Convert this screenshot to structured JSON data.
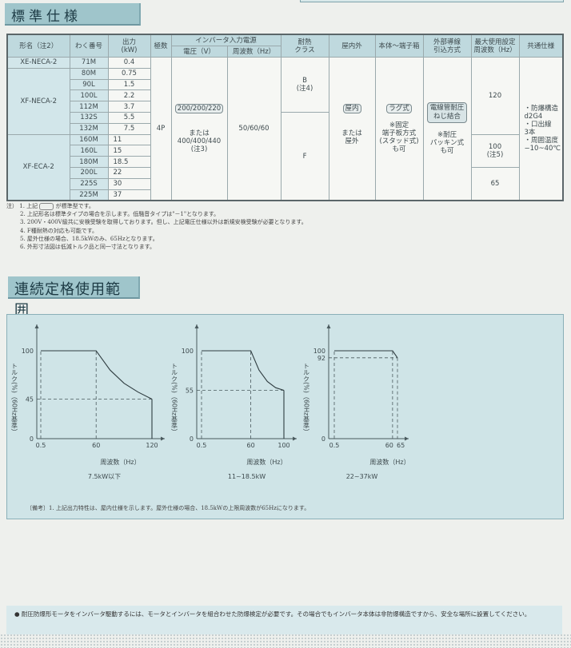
{
  "section1_title": "標準仕様",
  "section2_title": "連続定格使用範囲",
  "table": {
    "headers": {
      "model": "形名（注2）",
      "frame": "わく番号",
      "output": "出力",
      "output_unit": "(kW)",
      "poles": "極数",
      "inverter_power": "インバータ入力電源",
      "voltage": "電圧（V）",
      "frequency": "周波数（Hz）",
      "insulation": "耐熱",
      "insulation2": "クラス",
      "location": "屋内外",
      "terminal": "本体～端子箱",
      "wiring": "外部導線",
      "wiring2": "引込方式",
      "max_freq": "最大使用設定",
      "max_freq2": "周波数（Hz）",
      "common": "共通仕様"
    },
    "models": [
      "XE-NECA-2",
      "XF-NECA-2",
      "XF-ECA-2"
    ],
    "rows": [
      {
        "frame": "71M",
        "output": "0.4"
      },
      {
        "frame": "80M",
        "output": "0.75"
      },
      {
        "frame": "90L",
        "output": "1.5"
      },
      {
        "frame": "100L",
        "output": "2.2"
      },
      {
        "frame": "112M",
        "output": "3.7"
      },
      {
        "frame": "132S",
        "output": "5.5"
      },
      {
        "frame": "132M",
        "output": "7.5"
      },
      {
        "frame": "160M",
        "output": "11"
      },
      {
        "frame": "160L",
        "output": "15"
      },
      {
        "frame": "180M",
        "output": "18.5"
      },
      {
        "frame": "200L",
        "output": "22"
      },
      {
        "frame": "225S",
        "output": "30"
      },
      {
        "frame": "225M",
        "output": "37"
      }
    ],
    "poles": "4P",
    "voltage_std": "200/200/220",
    "voltage_or": "または",
    "voltage_alt": "400/400/440",
    "voltage_note": "(注3)",
    "frequency": "50/60/60",
    "insulation_b": "B",
    "insulation_b_note": "(注4)",
    "insulation_f": "F",
    "location_std": "屋内",
    "location_or": "または",
    "location_alt": "屋外",
    "terminal_std": "ラグ式",
    "terminal_alt": [
      "※固定",
      "端子板方式",
      "(スタッド式)",
      "も可"
    ],
    "wiring_std": [
      "電線管耐圧",
      "ねじ結合"
    ],
    "wiring_alt": [
      "※耐圧",
      "パッキン式",
      "も可"
    ],
    "max_freq_1": "120",
    "max_freq_2": "100",
    "max_freq_2_note": "(注5)",
    "max_freq_3": "65",
    "common": [
      "・防爆構造",
      "d2G4",
      "・口出線",
      "3本",
      "・周囲温度",
      "−10~40℃"
    ]
  },
  "notes": {
    "prefix": "注）",
    "items": [
      [
        "1. 上記",
        "が標準型です。"
      ],
      "2. 上記形名は標準タイプの場合を示します。低騒音タイプは\"－1\"となります。",
      "3. 200V・400V級共に安検受験を取得しております。但し、上記電圧仕様以外は新規安検受験が必要となります。",
      "4. F種耐熱の対応も可能です。",
      "5. 屋外仕様の場合、18.5kWのみ、65Hzとなります。",
      "6. 外形寸法図は低減トルク品と同一寸法となります。"
    ]
  },
  "chart_data": [
    {
      "type": "line",
      "caption": "7.5kW以下",
      "xlabel": "周波数（Hz）",
      "ylabel": "トルク(%)（60Hz基準）",
      "x_ticks": [
        "0.5",
        "60",
        "120"
      ],
      "y_ticks": [
        "0",
        "45",
        "100"
      ],
      "x": [
        0.5,
        60,
        75,
        90,
        105,
        120
      ],
      "y": [
        100,
        100,
        78,
        63,
        53,
        45
      ],
      "xlim": [
        0,
        120
      ],
      "ylim": [
        0,
        100
      ]
    },
    {
      "type": "line",
      "caption": "11~18.5kW",
      "xlabel": "周波数（Hz）",
      "ylabel": "トルク(%)（60Hz基準）",
      "x_ticks": [
        "0.5",
        "60",
        "100"
      ],
      "y_ticks": [
        "0",
        "55",
        "100"
      ],
      "x": [
        0.5,
        60,
        70,
        80,
        90,
        100
      ],
      "y": [
        100,
        100,
        78,
        65,
        58,
        55
      ],
      "xlim": [
        0,
        100
      ],
      "ylim": [
        0,
        100
      ]
    },
    {
      "type": "line",
      "caption": "22~37kW",
      "xlabel": "周波数（Hz）",
      "ylabel": "トルク(%)（60Hz基準）",
      "x_ticks": [
        "0.5",
        "60",
        "65"
      ],
      "y_ticks": [
        "0",
        "92",
        "100"
      ],
      "x": [
        0.5,
        60,
        65
      ],
      "y": [
        100,
        100,
        92
      ],
      "xlim": [
        0,
        65
      ],
      "ylim": [
        0,
        100
      ]
    }
  ],
  "remark": "〔備考〕1. 上記出力特性は、屋内仕様を示します。屋外仕様の場合、18.5kWの上限周波数が65Hzになります。",
  "footer_note": "● 耐圧防爆形モータをインバータ駆動するには、モータとインバータを組合わせた防爆検定が必要です。その場合でもインバータ本体は非防爆構造ですから、安全な場所に設置してください。",
  "colors": {
    "panel": "#cfe4e7",
    "title_bg": "#9fc5cb",
    "header_bg": "#bfd9de"
  }
}
